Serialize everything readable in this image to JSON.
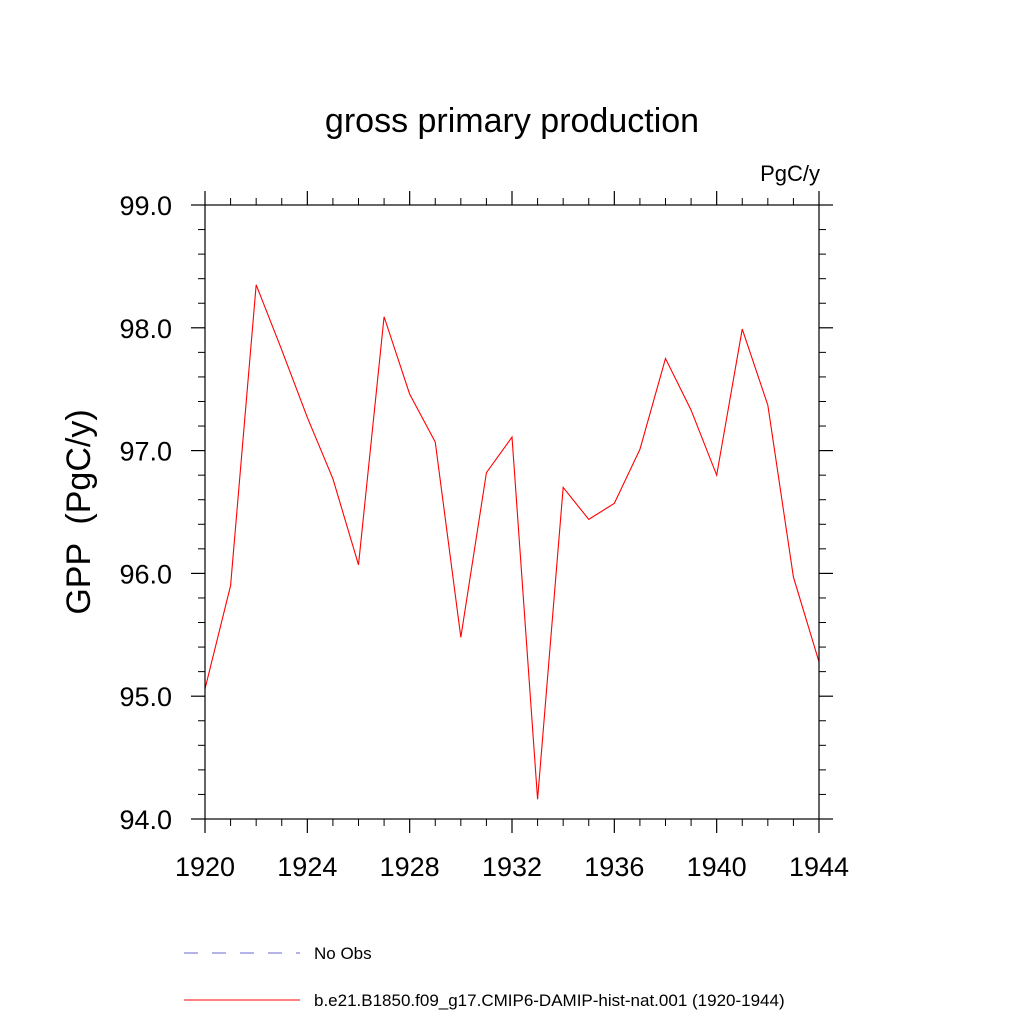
{
  "chart_data": {
    "type": "line",
    "title": "gross primary production",
    "units": "PgC/y",
    "ylabel": "GPP  (PgC/y)",
    "xlabel": "",
    "xlim": [
      1920,
      1944
    ],
    "ylim": [
      94.0,
      99.0
    ],
    "x_ticks": [
      "1920",
      "1924",
      "1928",
      "1932",
      "1936",
      "1940",
      "1944"
    ],
    "y_ticks": [
      "94.0",
      "95.0",
      "96.0",
      "97.0",
      "98.0",
      "99.0"
    ],
    "grid": false,
    "legend_position": "bottom",
    "x": [
      1920,
      1921,
      1922,
      1923,
      1924,
      1925,
      1926,
      1927,
      1928,
      1929,
      1930,
      1931,
      1932,
      1933,
      1934,
      1935,
      1936,
      1937,
      1938,
      1939,
      1940,
      1941,
      1942,
      1943,
      1944
    ],
    "series": [
      {
        "name": "b.e21.B1850.f09_g17.CMIP6-DAMIP-hist-nat.001 (1920-1944)",
        "color": "#ff0000",
        "style": "solid",
        "values": [
          95.06,
          95.9,
          98.35,
          97.82,
          97.27,
          96.77,
          96.07,
          98.09,
          97.46,
          97.07,
          95.48,
          96.82,
          97.11,
          94.16,
          96.7,
          96.44,
          96.57,
          97.01,
          97.75,
          97.33,
          96.8,
          97.99,
          97.37,
          95.97,
          95.28
        ]
      }
    ],
    "legend": [
      {
        "label": "No Obs",
        "color": "#6a6ad6",
        "style": "dashed"
      },
      {
        "label": "b.e21.B1850.f09_g17.CMIP6-DAMIP-hist-nat.001 (1920-1944)",
        "color": "#ff0000",
        "style": "solid"
      }
    ]
  }
}
